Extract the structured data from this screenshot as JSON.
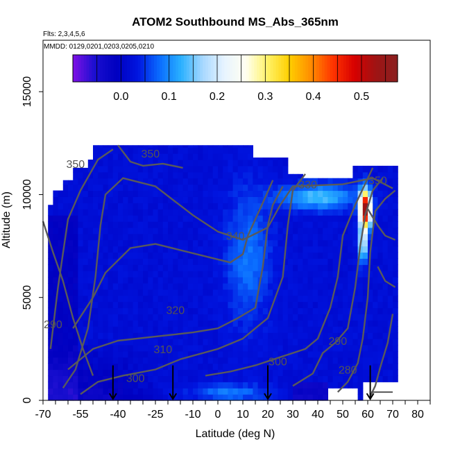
{
  "chart_data": {
    "type": "heatmap",
    "title": "ATOM2 Southbound MS_Abs_365nm",
    "subtitle_flights": "Flts: 2,3,4,5,6",
    "subtitle_dates": "MMDD: 0129,0201,0203,0205,0210",
    "xlabel": "Latitude (deg N)",
    "ylabel": "Altitude (m)",
    "xlim": [
      -70,
      85
    ],
    "ylim": [
      0,
      17500
    ],
    "x_tick_labels": [
      "-70",
      "-55",
      "-40",
      "-25",
      "-10",
      "0",
      "10",
      "20",
      "30",
      "40",
      "50",
      "60",
      "70",
      "80"
    ],
    "x_tick_values": [
      -70,
      -55,
      -40,
      -25,
      -10,
      0,
      10,
      20,
      30,
      40,
      50,
      60,
      70,
      80
    ],
    "y_tick_labels": [
      "0",
      "5000",
      "10000",
      "15000"
    ],
    "y_tick_values": [
      0,
      5000,
      10000,
      15000
    ],
    "colorbar": {
      "min": -0.1,
      "max": 0.575,
      "tick_labels": [
        "0.0",
        "0.1",
        "0.2",
        "0.3",
        "0.4",
        "0.5"
      ],
      "tick_values": [
        0.0,
        0.1,
        0.2,
        0.3,
        0.4,
        0.5
      ],
      "colors": [
        "#7f10e6",
        "#1a0fd0",
        "#0000c0",
        "#0015e0",
        "#0a6cff",
        "#2ab1ff",
        "#a8d8ff",
        "#e8f4ff",
        "#fffff0",
        "#fff266",
        "#ffcf00",
        "#ff8c00",
        "#ff3500",
        "#d80000",
        "#9e1414",
        "#8b2020"
      ]
    },
    "isentrope_labels": [
      {
        "text": "350",
        "lat": -27,
        "alt": 11800
      },
      {
        "text": "330",
        "lat": 36,
        "alt": 10300
      },
      {
        "text": "350",
        "lat": 64,
        "alt": 10500
      },
      {
        "text": "340",
        "lat": 7,
        "alt": 7800
      },
      {
        "text": "320",
        "lat": -17,
        "alt": 4200
      },
      {
        "text": "310",
        "lat": -22,
        "alt": 2300
      },
      {
        "text": "300",
        "lat": -33,
        "alt": 900
      },
      {
        "text": "300",
        "lat": 24,
        "alt": 1700
      },
      {
        "text": "290",
        "lat": -66,
        "alt": 3500
      },
      {
        "text": "290",
        "lat": 48,
        "alt": 2700
      },
      {
        "text": "280",
        "lat": 52,
        "alt": 1300
      },
      {
        "text": "350",
        "lat": -57,
        "alt": 11300
      }
    ],
    "arrows_lat": [
      -42,
      -18,
      20,
      61
    ],
    "grid": false,
    "legend": "top colorbar"
  }
}
